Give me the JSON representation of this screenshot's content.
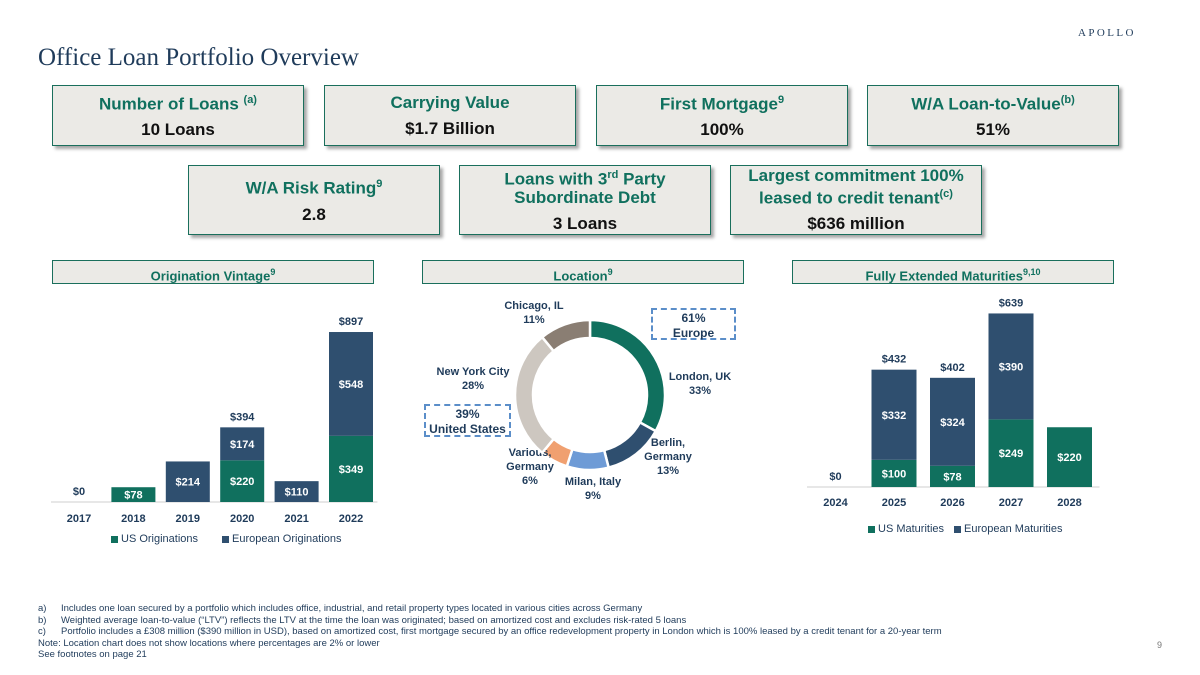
{
  "brand": "APOLLO",
  "title": "Office Loan Portfolio Overview",
  "kpis": [
    {
      "label": "Number of Loans",
      "sup": "(a)",
      "value": "10 Loans"
    },
    {
      "label": "Carrying Value",
      "sup": "",
      "value": "$1.7 Billion"
    },
    {
      "label": "First Mortgage",
      "sup": "9",
      "value": "100%"
    },
    {
      "label": "W/A Loan-to-Value",
      "sup": "(b)",
      "value": "51%"
    },
    {
      "label": "W/A Risk Rating",
      "sup": "9",
      "value": "2.8"
    },
    {
      "label1": "Loans with 3",
      "label1_sup": "rd",
      "label1_end": " Party",
      "label2": "Subordinate Debt",
      "value": "3 Loans"
    },
    {
      "label1": "Largest commitment 100%",
      "label2": "leased to credit tenant",
      "sup": "(c)",
      "value": "$636 million"
    }
  ],
  "sections": {
    "vintage": {
      "label": "Origination Vintage",
      "sup": "9"
    },
    "location": {
      "label": "Location",
      "sup": "9"
    },
    "maturities": {
      "label": "Fully Extended Maturities",
      "sup": "9,10"
    }
  },
  "colors": {
    "us": "#10705e",
    "europe": "#2f4f6f",
    "brand_green": "#10705e",
    "box_bg": "#ebeae6"
  },
  "chart_data": [
    {
      "type": "bar",
      "stacked": true,
      "title": "Origination Vintage",
      "categories": [
        "2017",
        "2018",
        "2019",
        "2020",
        "2021",
        "2022"
      ],
      "series": [
        {
          "name": "US Originations",
          "values": [
            0,
            78,
            0,
            220,
            0,
            349
          ],
          "labels": [
            "",
            "$78",
            "",
            "$220",
            "",
            "$349"
          ]
        },
        {
          "name": "European Originations",
          "values": [
            0,
            0,
            214,
            174,
            110,
            548
          ],
          "labels": [
            "",
            "",
            "$214",
            "$174",
            "$110",
            "$548"
          ]
        }
      ],
      "totals": [
        "$0",
        "",
        "",
        "$394",
        "",
        "$897"
      ],
      "legend": "bottom"
    },
    {
      "type": "pie",
      "donut": true,
      "title": "Location",
      "slices": [
        {
          "name": "London, UK",
          "value": 33,
          "label": "33%",
          "color": "#10705e"
        },
        {
          "name": "Berlin, Germany",
          "value": 13,
          "label": "13%",
          "color": "#2f4f6f"
        },
        {
          "name": "Milan, Italy",
          "value": 9,
          "label": "9%",
          "color": "#6e9bd6"
        },
        {
          "name": "Various, Germany",
          "value": 6,
          "label": "6%",
          "color": "#f0a070"
        },
        {
          "name": "New York City",
          "value": 28,
          "label": "28%",
          "color": "#cdc7c0"
        },
        {
          "name": "Chicago, IL",
          "value": 11,
          "label": "11%",
          "color": "#8a7e73"
        }
      ],
      "annotations": [
        {
          "line1": "61%",
          "line2": "Europe"
        },
        {
          "line1": "39%",
          "line2": "United States"
        }
      ]
    },
    {
      "type": "bar",
      "stacked": true,
      "title": "Fully Extended Maturities",
      "categories": [
        "2024",
        "2025",
        "2026",
        "2027",
        "2028"
      ],
      "series": [
        {
          "name": "US Maturities",
          "values": [
            0,
            100,
            78,
            249,
            220
          ],
          "labels": [
            "",
            "$100",
            "$78",
            "$249",
            "$220"
          ]
        },
        {
          "name": "European Maturities",
          "values": [
            0,
            332,
            324,
            390,
            0
          ],
          "labels": [
            "",
            "$332",
            "$324",
            "$390",
            ""
          ]
        }
      ],
      "totals": [
        "$0",
        "$432",
        "$402",
        "$639",
        ""
      ],
      "legend": "bottom"
    }
  ],
  "footnotes": [
    {
      "key": "a)",
      "text": "Includes one loan secured by a portfolio which includes office, industrial, and retail property types located in various cities across Germany"
    },
    {
      "key": "b)",
      "text": "Weighted average loan-to-value (“LTV”) reflects the LTV at the time the loan was originated; based on amortized cost and excludes risk-rated 5 loans"
    },
    {
      "key": "c)",
      "text": "Portfolio includes a £308 million ($390 million in USD), based on amortized cost, first mortgage secured by an office redevelopment property in London which is 100% leased by a credit tenant for a 20-year term"
    }
  ],
  "notes": [
    "Note: Location chart does not show locations where percentages are 2% or lower",
    "See footnotes on page 21"
  ],
  "page_number": "9"
}
